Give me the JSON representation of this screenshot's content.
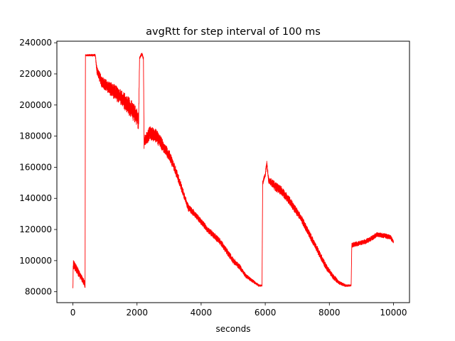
{
  "chart_data": {
    "type": "line",
    "title": "avgRtt for step interval of 100 ms",
    "xlabel": "seconds",
    "ylabel": "",
    "xlim": [
      -500,
      10500
    ],
    "ylim": [
      73000,
      241000
    ],
    "xticks": [
      0,
      2000,
      4000,
      6000,
      8000,
      10000
    ],
    "yticks": [
      80000,
      100000,
      120000,
      140000,
      160000,
      180000,
      200000,
      220000,
      240000
    ],
    "grid": false,
    "series": [
      {
        "color": "#ff0000",
        "trend": [
          [
            0,
            80000
          ],
          [
            10,
            98000
          ],
          [
            350,
            86000
          ],
          [
            380,
            84000
          ],
          [
            390,
            232000
          ],
          [
            700,
            232000
          ],
          [
            750,
            222000
          ],
          [
            900,
            215000
          ],
          [
            1200,
            210000
          ],
          [
            1500,
            205000
          ],
          [
            1800,
            198000
          ],
          [
            2000,
            192000
          ],
          [
            2050,
            190000
          ],
          [
            2080,
            230000
          ],
          [
            2150,
            233000
          ],
          [
            2200,
            230000
          ],
          [
            2220,
            176000
          ],
          [
            2400,
            182000
          ],
          [
            2600,
            180000
          ],
          [
            2800,
            174000
          ],
          [
            3000,
            168000
          ],
          [
            3200,
            158000
          ],
          [
            3400,
            146000
          ],
          [
            3600,
            134000
          ],
          [
            3800,
            130000
          ],
          [
            4000,
            125000
          ],
          [
            4200,
            120000
          ],
          [
            4400,
            116000
          ],
          [
            4600,
            112000
          ],
          [
            4800,
            106000
          ],
          [
            5000,
            100000
          ],
          [
            5200,
            96000
          ],
          [
            5400,
            90000
          ],
          [
            5600,
            87000
          ],
          [
            5800,
            84000
          ],
          [
            5900,
            84000
          ],
          [
            5920,
            150000
          ],
          [
            6000,
            155000
          ],
          [
            6050,
            163000
          ],
          [
            6100,
            152000
          ],
          [
            6300,
            148000
          ],
          [
            6500,
            145000
          ],
          [
            6700,
            140000
          ],
          [
            6900,
            134000
          ],
          [
            7100,
            128000
          ],
          [
            7300,
            120000
          ],
          [
            7500,
            112000
          ],
          [
            7700,
            104000
          ],
          [
            7900,
            96000
          ],
          [
            8100,
            90000
          ],
          [
            8300,
            86000
          ],
          [
            8500,
            84000
          ],
          [
            8680,
            84000
          ],
          [
            8700,
            110000
          ],
          [
            8900,
            111000
          ],
          [
            9100,
            112000
          ],
          [
            9300,
            114000
          ],
          [
            9500,
            117000
          ],
          [
            9700,
            116000
          ],
          [
            9900,
            115000
          ],
          [
            10000,
            112000
          ]
        ],
        "amplitude": [
          [
            0,
            6000
          ],
          [
            380,
            4000
          ],
          [
            390,
            1000
          ],
          [
            700,
            1500
          ],
          [
            750,
            6000
          ],
          [
            1200,
            9000
          ],
          [
            1800,
            12000
          ],
          [
            2050,
            12000
          ],
          [
            2080,
            2000
          ],
          [
            2200,
            2000
          ],
          [
            2220,
            8000
          ],
          [
            2600,
            9000
          ],
          [
            3000,
            7000
          ],
          [
            3400,
            5000
          ],
          [
            3800,
            4000
          ],
          [
            4400,
            4000
          ],
          [
            5000,
            4000
          ],
          [
            5600,
            2000
          ],
          [
            5900,
            1000
          ],
          [
            5920,
            3000
          ],
          [
            6300,
            6000
          ],
          [
            7000,
            5000
          ],
          [
            8000,
            4000
          ],
          [
            8500,
            1500
          ],
          [
            8680,
            1000
          ],
          [
            8700,
            3000
          ],
          [
            9500,
            3000
          ],
          [
            10000,
            3000
          ]
        ]
      }
    ]
  }
}
